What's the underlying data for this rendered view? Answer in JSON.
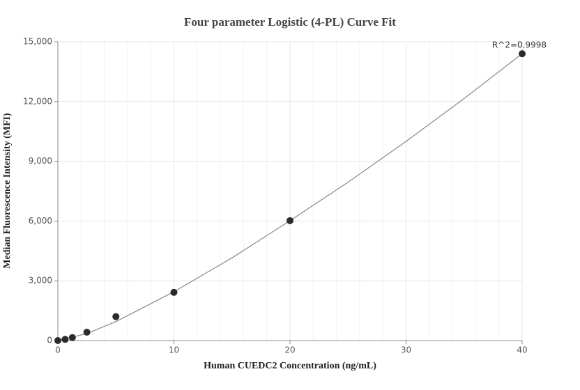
{
  "chart_data": {
    "type": "scatter",
    "title": "Four parameter Logistic (4-PL) Curve Fit",
    "x_label": "Human CUEDC2 Concentration (ng/mL)",
    "y_label": "Median Fluorescence Intensity (MFI)",
    "annotation": "R^2=0.9998",
    "x": [
      0,
      0.625,
      1.25,
      2.5,
      5,
      10,
      20,
      40
    ],
    "values": [
      0,
      60,
      150,
      420,
      1200,
      2420,
      6020,
      14400
    ],
    "color": "#2b2b2b",
    "fit_curve": {
      "color": "#888888",
      "x": [
        0,
        2.5,
        5,
        10,
        15,
        20,
        25,
        30,
        35,
        40
      ],
      "y": [
        0,
        350,
        950,
        2450,
        4150,
        6020,
        7950,
        10000,
        12150,
        14400
      ]
    },
    "xlim": [
      0,
      40
    ],
    "xticks": [
      0,
      10,
      20,
      30,
      40
    ],
    "x_minor_grid": [
      2,
      4,
      6,
      8,
      12,
      14,
      16,
      18,
      22,
      24,
      26,
      28,
      32,
      34,
      36,
      38
    ],
    "ylim": [
      0,
      15000
    ],
    "yticks": [
      0,
      {
        "value": 3000,
        "label": "3,000"
      },
      {
        "value": 6000,
        "label": "6,000"
      },
      {
        "value": 9000,
        "label": "9,000"
      },
      {
        "value": 12000,
        "label": "12,000"
      },
      {
        "value": 15000,
        "label": "15,000"
      }
    ],
    "grid": true
  }
}
